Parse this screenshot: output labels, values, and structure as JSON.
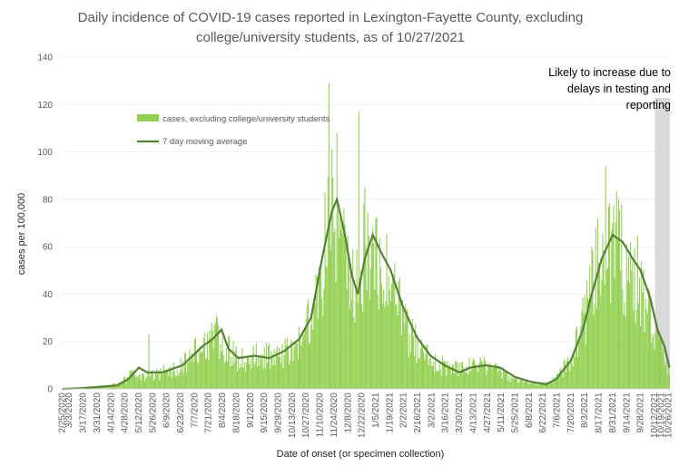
{
  "chart_data": {
    "type": "bar",
    "title_lines": [
      "Daily incidence of COVID-19 cases reported in Lexington-Fayette County, excluding",
      "college/university students, as of 10/27/2021"
    ],
    "xlabel": "Date of onset (or specimen collection)",
    "ylabel": "cases per 100,000",
    "ylim": [
      0,
      140
    ],
    "yticks": [
      "0",
      "20",
      "40",
      "60",
      "80",
      "100",
      "120",
      "140"
    ],
    "x_start": "2020-02-25",
    "x_end": "2021-10-27",
    "xtick_labels": [
      "2/25/2020",
      "3/3/2020",
      "3/17/2020",
      "3/31/2020",
      "4/14/2020",
      "4/28/2020",
      "5/12/2020",
      "5/26/2020",
      "6/9/2020",
      "6/23/2020",
      "7/7/2020",
      "7/21/2020",
      "8/4/2020",
      "8/18/2020",
      "9/1/2020",
      "9/15/2020",
      "9/29/2020",
      "10/13/2020",
      "10/27/2020",
      "11/10/2020",
      "11/24/2020",
      "12/8/2020",
      "12/22/2020",
      "1/5/2021",
      "1/19/2021",
      "2/2/2021",
      "2/16/2021",
      "3/2/2021",
      "3/16/2021",
      "3/30/2021",
      "4/13/2021",
      "4/27/2021",
      "5/11/2021",
      "5/25/2021",
      "6/8/2021",
      "6/22/2021",
      "7/6/2021",
      "7/20/2021",
      "8/3/2021",
      "8/17/2021",
      "8/31/2021",
      "9/14/2021",
      "9/28/2021",
      "10/12/2021",
      "10/19/2021",
      "10/26/2021"
    ],
    "shaded_region": {
      "start": "2021-10-13",
      "end": "2021-10-27",
      "color": "#d9d9d9"
    },
    "annotation_lines": [
      "Likely to increase due to",
      "delays in testing and",
      "reporting"
    ],
    "series": [
      {
        "name": "cases, excluding college/university students",
        "type": "bar",
        "color": "#92d050",
        "daily_samples": [
          [
            "2020-02-25",
            0
          ],
          [
            "2020-03-15",
            0.5
          ],
          [
            "2020-04-01",
            1
          ],
          [
            "2020-04-20",
            2
          ],
          [
            "2020-05-05",
            6
          ],
          [
            "2020-05-20",
            5
          ],
          [
            "2020-06-05",
            7
          ],
          [
            "2020-06-25",
            10
          ],
          [
            "2020-07-15",
            18
          ],
          [
            "2020-07-30",
            22
          ],
          [
            "2020-08-10",
            16
          ],
          [
            "2020-08-25",
            12
          ],
          [
            "2020-09-10",
            14
          ],
          [
            "2020-09-25",
            13
          ],
          [
            "2020-10-10",
            17
          ],
          [
            "2020-10-25",
            22
          ],
          [
            "2020-11-05",
            35
          ],
          [
            "2020-11-15",
            60
          ],
          [
            "2020-11-22",
            75
          ],
          [
            "2020-11-28",
            65
          ],
          [
            "2020-12-08",
            45
          ],
          [
            "2020-12-15",
            40
          ],
          [
            "2020-12-25",
            60
          ],
          [
            "2021-01-05",
            55
          ],
          [
            "2021-01-20",
            45
          ],
          [
            "2021-02-05",
            25
          ],
          [
            "2021-02-20",
            15
          ],
          [
            "2021-03-05",
            12
          ],
          [
            "2021-03-20",
            8
          ],
          [
            "2021-04-05",
            9
          ],
          [
            "2021-04-20",
            10
          ],
          [
            "2021-05-05",
            9
          ],
          [
            "2021-05-20",
            5
          ],
          [
            "2021-06-05",
            3
          ],
          [
            "2021-06-20",
            2
          ],
          [
            "2021-07-05",
            4
          ],
          [
            "2021-07-20",
            12
          ],
          [
            "2021-08-05",
            35
          ],
          [
            "2021-08-20",
            55
          ],
          [
            "2021-08-30",
            62
          ],
          [
            "2021-09-10",
            55
          ],
          [
            "2021-09-25",
            45
          ],
          [
            "2021-10-10",
            28
          ],
          [
            "2021-10-20",
            15
          ],
          [
            "2021-10-27",
            7
          ]
        ],
        "spikes": [
          [
            "2020-05-22",
            23
          ],
          [
            "2020-07-30",
            30
          ],
          [
            "2020-11-19",
            129
          ],
          [
            "2020-11-27",
            108
          ],
          [
            "2020-12-19",
            117
          ],
          [
            "2021-01-02",
            68
          ],
          [
            "2021-08-24",
            94
          ]
        ]
      },
      {
        "name": "7 day moving average",
        "type": "line",
        "color": "#538135",
        "points": [
          [
            "2020-02-25",
            0
          ],
          [
            "2020-03-15",
            0.3
          ],
          [
            "2020-04-01",
            0.8
          ],
          [
            "2020-04-20",
            1.5
          ],
          [
            "2020-05-01",
            4
          ],
          [
            "2020-05-12",
            9
          ],
          [
            "2020-05-20",
            7
          ],
          [
            "2020-06-05",
            7
          ],
          [
            "2020-06-25",
            10
          ],
          [
            "2020-07-15",
            18
          ],
          [
            "2020-07-25",
            21
          ],
          [
            "2020-08-03",
            25
          ],
          [
            "2020-08-10",
            17
          ],
          [
            "2020-08-20",
            13
          ],
          [
            "2020-09-05",
            14
          ],
          [
            "2020-09-20",
            13
          ],
          [
            "2020-10-05",
            16
          ],
          [
            "2020-10-20",
            21
          ],
          [
            "2020-11-01",
            30
          ],
          [
            "2020-11-12",
            55
          ],
          [
            "2020-11-22",
            75
          ],
          [
            "2020-11-27",
            80
          ],
          [
            "2020-12-05",
            65
          ],
          [
            "2020-12-12",
            48
          ],
          [
            "2020-12-18",
            40
          ],
          [
            "2020-12-25",
            55
          ],
          [
            "2021-01-02",
            65
          ],
          [
            "2021-01-10",
            58
          ],
          [
            "2021-01-20",
            50
          ],
          [
            "2021-02-01",
            35
          ],
          [
            "2021-02-15",
            22
          ],
          [
            "2021-03-01",
            14
          ],
          [
            "2021-03-15",
            10
          ],
          [
            "2021-03-30",
            7
          ],
          [
            "2021-04-10",
            9
          ],
          [
            "2021-04-25",
            10
          ],
          [
            "2021-05-10",
            9
          ],
          [
            "2021-05-25",
            5
          ],
          [
            "2021-06-10",
            3
          ],
          [
            "2021-06-25",
            2
          ],
          [
            "2021-07-05",
            4
          ],
          [
            "2021-07-20",
            12
          ],
          [
            "2021-08-01",
            25
          ],
          [
            "2021-08-10",
            40
          ],
          [
            "2021-08-20",
            55
          ],
          [
            "2021-08-31",
            65
          ],
          [
            "2021-09-10",
            62
          ],
          [
            "2021-09-20",
            55
          ],
          [
            "2021-09-28",
            50
          ],
          [
            "2021-10-08",
            38
          ],
          [
            "2021-10-15",
            25
          ],
          [
            "2021-10-22",
            18
          ],
          [
            "2021-10-27",
            9
          ]
        ]
      }
    ]
  }
}
